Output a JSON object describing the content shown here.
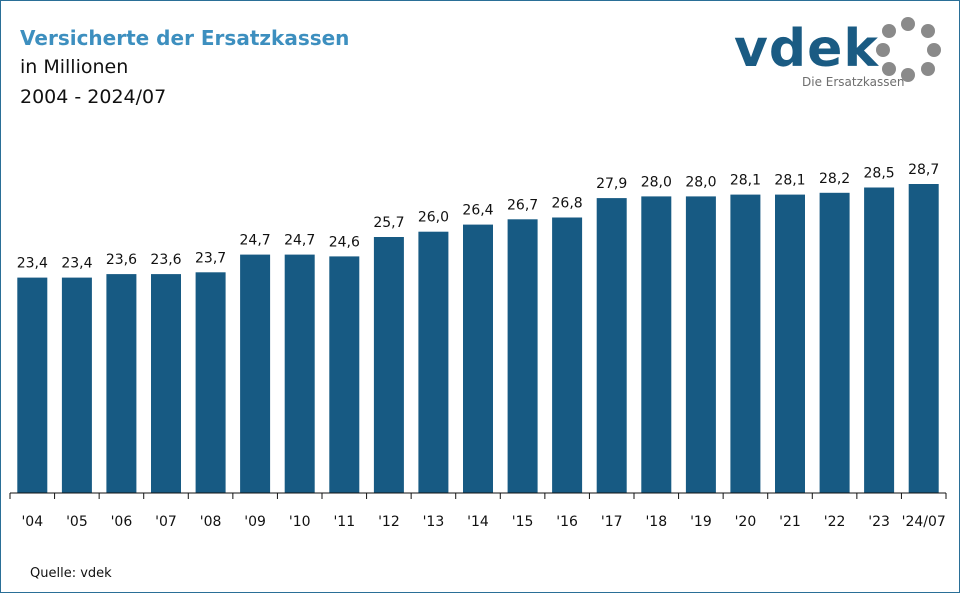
{
  "header": {
    "title": "Versicherte der Ersatzkassen",
    "subtitle": "in Millionen",
    "period": "2004 - 2024/07"
  },
  "logo": {
    "wordmark": "vdek",
    "tagline": "Die Ersatzkassen",
    "icon": "ring-of-dots-icon",
    "brand_color": "#1a5b83",
    "dot_color": "#8a8a8a"
  },
  "footer": {
    "source": "Quelle: vdek"
  },
  "colors": {
    "bar": "#175a83",
    "title": "#3d8fbf"
  },
  "chart_data": {
    "type": "bar",
    "title": "Versicherte der Ersatzkassen",
    "ylabel": "in Millionen",
    "categories": [
      "'04",
      "'05",
      "'06",
      "'07",
      "'08",
      "'09",
      "'10",
      "'11",
      "'12",
      "'13",
      "'14",
      "'15",
      "'16",
      "'17",
      "'18",
      "'19",
      "'20",
      "'21",
      "'22",
      "'23",
      "'24/07"
    ],
    "values": [
      23.4,
      23.4,
      23.6,
      23.6,
      23.7,
      24.7,
      24.7,
      24.6,
      25.7,
      26.0,
      26.4,
      26.7,
      26.8,
      27.9,
      28.0,
      28.0,
      28.1,
      28.1,
      28.2,
      28.5,
      28.7
    ],
    "value_labels": [
      "23,4",
      "23,4",
      "23,6",
      "23,6",
      "23,7",
      "24,7",
      "24,7",
      "24,6",
      "25,7",
      "26,0",
      "26,4",
      "26,7",
      "26,8",
      "27,9",
      "28,0",
      "28,0",
      "28,1",
      "28,1",
      "28,2",
      "28,5",
      "28,7"
    ],
    "ylim": [
      11.2,
      28.7
    ],
    "grid": false
  }
}
